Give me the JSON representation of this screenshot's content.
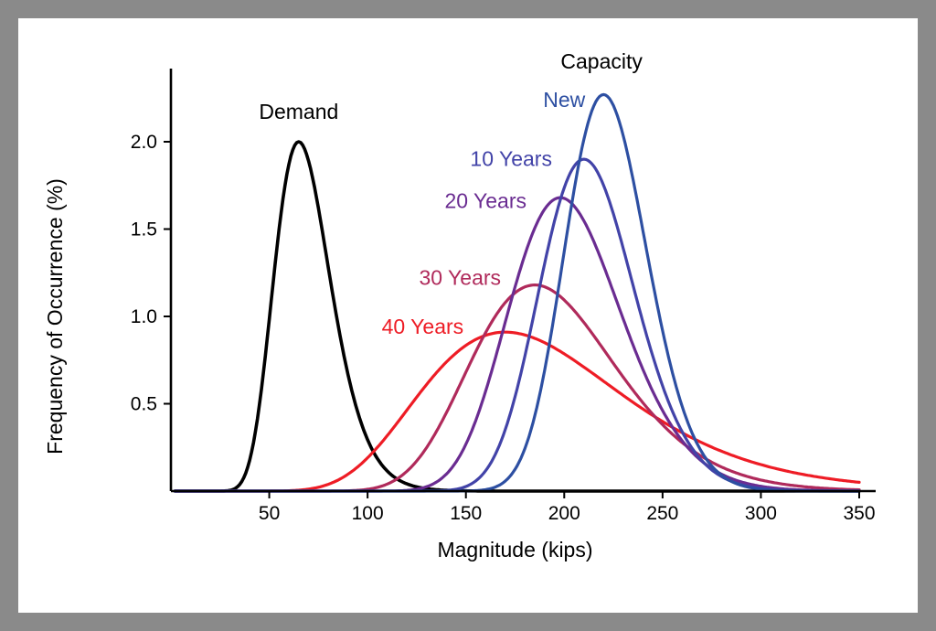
{
  "figure": {
    "frame_color": "#8a8a8a",
    "panel_color": "#ffffff"
  },
  "chart_data": {
    "type": "line",
    "title": "",
    "xlabel": "Magnitude (kips)",
    "ylabel": "Frequency of Occurrence (%)",
    "xlim": [
      0,
      350
    ],
    "ylim": [
      0,
      2.45
    ],
    "x_ticks": [
      50,
      100,
      150,
      200,
      250,
      300,
      350
    ],
    "y_ticks": [
      0.5,
      1.0,
      1.5,
      2.0
    ],
    "grid": false,
    "legend_position": "none",
    "curve_model": "log-gaussian-peak",
    "series": [
      {
        "name": "Demand",
        "color": "#000000",
        "mode": 65,
        "sigma_log": 0.22,
        "peak": 2.0,
        "stroke_width": 3.6
      },
      {
        "name": "40 Years",
        "color": "#ee1c25",
        "mode": 170,
        "sigma_log": 0.3,
        "peak": 0.91,
        "stroke_width": 3.2
      },
      {
        "name": "30 Years",
        "color": "#b02a5b",
        "mode": 185,
        "sigma_log": 0.2,
        "peak": 1.18,
        "stroke_width": 3.2
      },
      {
        "name": "20 Years",
        "color": "#6a2c91",
        "mode": 198,
        "sigma_log": 0.145,
        "peak": 1.68,
        "stroke_width": 3.2
      },
      {
        "name": "10 Years",
        "color": "#4243a8",
        "mode": 210,
        "sigma_log": 0.115,
        "peak": 1.9,
        "stroke_width": 3.2
      },
      {
        "name": "New",
        "color": "#2d4fa2",
        "mode": 220,
        "sigma_log": 0.095,
        "peak": 2.27,
        "stroke_width": 3.2
      }
    ],
    "annotations": [
      {
        "text": "Demand",
        "x": 65,
        "y": 2.13,
        "color": "#000000"
      },
      {
        "text": "Capacity",
        "x": 219,
        "y": 2.42,
        "color": "#000000"
      },
      {
        "text": "New",
        "x": 200,
        "y": 2.2,
        "color": "#2d4fa2"
      },
      {
        "text": "10 Years",
        "x": 173,
        "y": 1.86,
        "color": "#4243a8"
      },
      {
        "text": "20 Years",
        "x": 160,
        "y": 1.62,
        "color": "#6a2c91"
      },
      {
        "text": "30 Years",
        "x": 147,
        "y": 1.18,
        "color": "#b02a5b"
      },
      {
        "text": "40 Years",
        "x": 128,
        "y": 0.9,
        "color": "#ee1c25"
      }
    ]
  }
}
